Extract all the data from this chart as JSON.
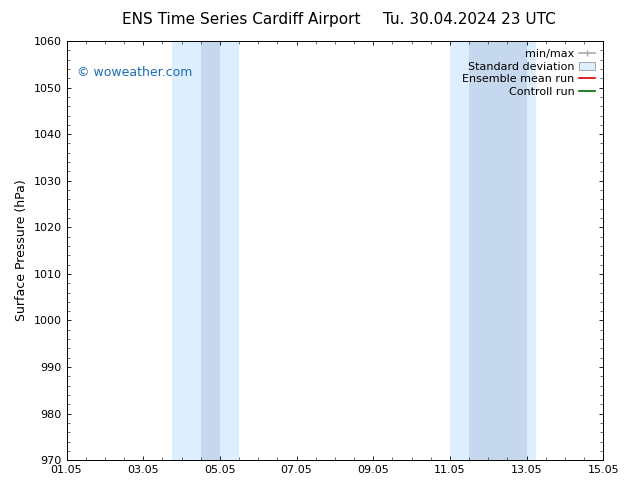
{
  "title_left": "ENS Time Series Cardiff Airport",
  "title_right": "Tu. 30.04.2024 23 UTC",
  "ylabel": "Surface Pressure (hPa)",
  "xlim": [
    1.05,
    15.05
  ],
  "ylim": [
    970,
    1060
  ],
  "xticks": [
    1.05,
    3.05,
    5.05,
    7.05,
    9.05,
    11.05,
    13.05,
    15.05
  ],
  "xticklabels": [
    "01.05",
    "03.05",
    "05.05",
    "07.05",
    "09.05",
    "11.05",
    "13.05",
    "15.05"
  ],
  "yticks": [
    970,
    980,
    990,
    1000,
    1010,
    1020,
    1030,
    1040,
    1050,
    1060
  ],
  "shaded_regions": [
    {
      "outer": [
        3.8,
        5.55
      ],
      "inner": [
        4.55,
        5.05
      ]
    },
    {
      "outer": [
        11.05,
        13.3
      ],
      "inner": [
        11.55,
        13.05
      ]
    }
  ],
  "shade_outer_color": "#ddeeff",
  "shade_inner_color": "#c5d8ee",
  "background_color": "#ffffff",
  "watermark_text": "© woweather.com",
  "watermark_color": "#1a6db5",
  "legend_entries": [
    {
      "label": "min/max",
      "type": "minmax",
      "color": "#aaaaaa"
    },
    {
      "label": "Standard deviation",
      "type": "stddev",
      "color": "#ddeeff"
    },
    {
      "label": "Ensemble mean run",
      "type": "line",
      "color": "#dd0000"
    },
    {
      "label": "Controll run",
      "type": "line",
      "color": "#006600"
    }
  ],
  "title_fontsize": 11,
  "tick_fontsize": 8,
  "ylabel_fontsize": 9,
  "legend_fontsize": 8,
  "watermark_fontsize": 9,
  "fig_bg_color": "#ffffff"
}
